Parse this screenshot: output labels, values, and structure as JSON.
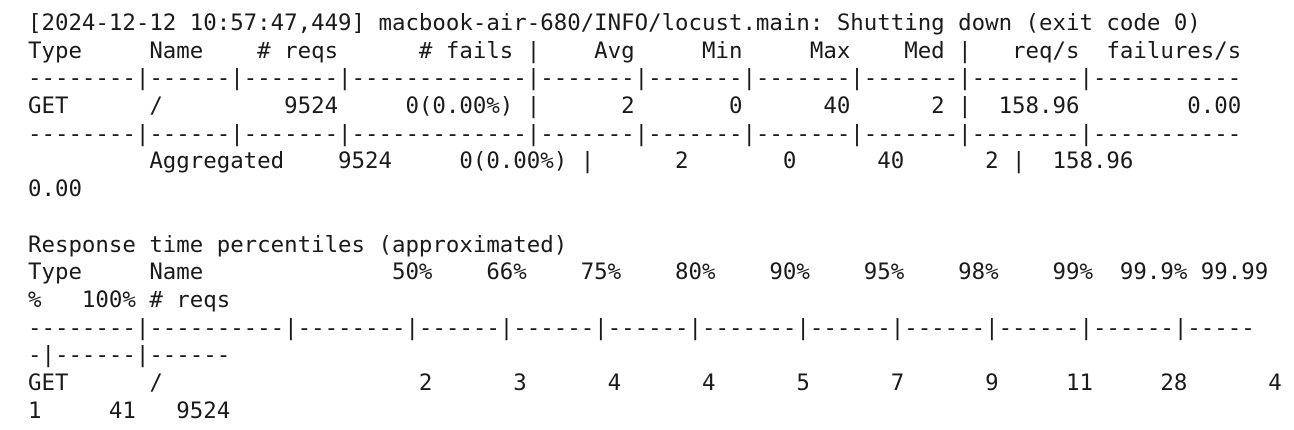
{
  "terminal": {
    "lines": [
      "[2024-12-12 10:57:47,449] macbook-air-680/INFO/locust.main: Shutting down (exit code 0)",
      "Type     Name    # reqs      # fails |    Avg     Min     Max    Med |   req/s  failures/s",
      "--------|------|-------|-------------|-------|-------|-------|-------|--------|-----------",
      "GET      /         9524     0(0.00%) |      2       0      40      2 |  158.96        0.00",
      "--------|------|-------|-------------|-------|-------|-------|-------|--------|-----------",
      "         Aggregated    9524     0(0.00%) |      2       0      40      2 |  158.96",
      "0.00",
      "",
      "Response time percentiles (approximated)",
      "Type     Name              50%    66%    75%    80%    90%    95%    98%    99%  99.9% 99.99",
      "%   100% # reqs",
      "--------|----------|--------|------|------|------|-------|------|------|------|------|-----",
      "-|------|------",
      "GET      /                   2      3      4      4      5      7      9     11     28      4",
      "1     41   9524"
    ]
  }
}
